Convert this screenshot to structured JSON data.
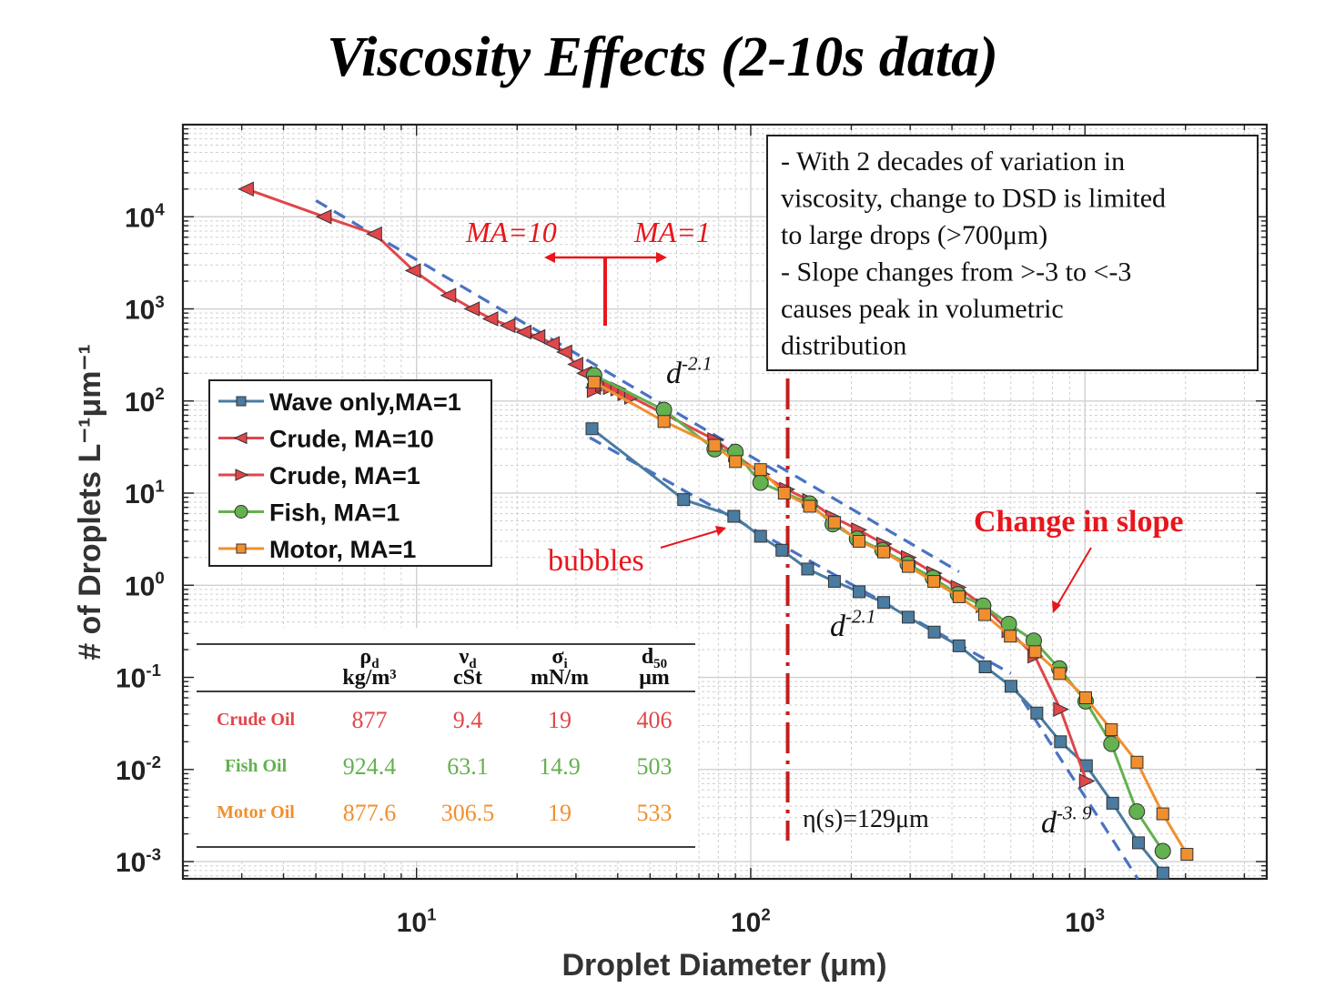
{
  "title": "Viscosity Effects (2-10s data)",
  "chart_data": {
    "type": "line",
    "title": "Viscosity Effects (2-10s data)",
    "xlabel": "Droplet Diameter (μm)",
    "ylabel": "# of Droplets L⁻¹μm⁻¹",
    "xscale": "log",
    "yscale": "log",
    "xlim": [
      2,
      3500
    ],
    "ylim": [
      0.00065,
      100000
    ],
    "grid": true,
    "legend_position": "middle-left",
    "x_ticks": [
      {
        "base": "10",
        "exp": "1"
      },
      {
        "base": "10",
        "exp": "2"
      },
      {
        "base": "10",
        "exp": "3"
      }
    ],
    "y_ticks": [
      {
        "base": "10",
        "exp": "4"
      },
      {
        "base": "10",
        "exp": "3"
      },
      {
        "base": "10",
        "exp": "2"
      },
      {
        "base": "10",
        "exp": "1"
      },
      {
        "base": "10",
        "exp": "0"
      },
      {
        "base": "10",
        "exp": "-1"
      },
      {
        "base": "10",
        "exp": "-2"
      },
      {
        "base": "10",
        "exp": "-3"
      }
    ],
    "series": [
      {
        "name": "Wave only,MA=1",
        "color": "#4a7ba0",
        "marker": "square",
        "x": [
          33.5,
          63,
          89,
          107,
          124,
          148,
          178,
          211,
          250,
          296,
          354,
          420,
          503,
          601,
          718,
          845,
          1010,
          1211,
          1446,
          1712
        ],
        "y": [
          50,
          8.5,
          5.6,
          3.4,
          2.4,
          1.5,
          1.1,
          0.85,
          0.65,
          0.45,
          0.31,
          0.22,
          0.13,
          0.08,
          0.041,
          0.02,
          0.011,
          0.0043,
          0.0016,
          0.00075
        ]
      },
      {
        "name": "Crude, MA=10",
        "color": "#e0464a",
        "marker": "triangle-left",
        "x": [
          3.1,
          5.3,
          7.5,
          9.8,
          12.5,
          14.7,
          16.7,
          18.8,
          21.0,
          23.1,
          25.5,
          27.8,
          30.0,
          31.9,
          33.9
        ],
        "y": [
          20000,
          10000,
          6500,
          2600,
          1400,
          1000,
          780,
          660,
          560,
          500,
          420,
          340,
          250,
          200,
          140
        ]
      },
      {
        "name": "Crude, MA=1",
        "color": "#e0464a",
        "marker": "triangle-right",
        "x": [
          34,
          36,
          38,
          40,
          42,
          44,
          78,
          90,
          108,
          128,
          150,
          176,
          210,
          250,
          296,
          353,
          417,
          496,
          592,
          708,
          845,
          1010
        ],
        "y": [
          130,
          150,
          140,
          135,
          120,
          110,
          38,
          26,
          16,
          11,
          8.3,
          5.5,
          4.0,
          2.8,
          2.0,
          1.35,
          0.95,
          0.6,
          0.32,
          0.17,
          0.045,
          0.0075
        ]
      },
      {
        "name": "Fish, MA=1",
        "color": "#63b14f",
        "marker": "circle",
        "x": [
          34,
          55,
          78,
          90,
          107,
          150,
          176,
          208,
          248,
          295,
          351,
          417,
          496,
          592,
          703,
          838,
          1005,
          1200,
          1430,
          1710
        ],
        "y": [
          190,
          80,
          30,
          28,
          13,
          7.7,
          4.6,
          3.2,
          2.4,
          1.7,
          1.2,
          0.8,
          0.6,
          0.38,
          0.25,
          0.125,
          0.055,
          0.019,
          0.0035,
          0.0013
        ]
      },
      {
        "name": "Motor, MA=1",
        "color": "#f18f2e",
        "marker": "square",
        "x": [
          34,
          55,
          78,
          90,
          107,
          126,
          150,
          178,
          211,
          250,
          296,
          353,
          420,
          501,
          598,
          710,
          840,
          1005,
          1200,
          1432,
          1710,
          2020
        ],
        "y": [
          160,
          60,
          33,
          22,
          18,
          10,
          7.2,
          4.8,
          3.0,
          2.3,
          1.6,
          1.1,
          0.75,
          0.48,
          0.28,
          0.19,
          0.11,
          0.06,
          0.027,
          0.012,
          0.0033,
          0.0012
        ]
      }
    ],
    "guide_lines": [
      {
        "label_base": "d",
        "label_exp": "-2.1",
        "color": "#4a72c4",
        "x": [
          5,
          120
        ],
        "y": [
          15000,
          17
        ]
      },
      {
        "label_base": "d",
        "label_exp": "-2.1",
        "color": "#4a72c4",
        "x": [
          33,
          600
        ],
        "y": [
          40,
          0.11
        ]
      },
      {
        "label_base": "d",
        "label_exp": "-2.1",
        "color": "#4a72c4",
        "x": [
          120,
          420
        ],
        "y": [
          20,
          1.4
        ]
      },
      {
        "label_base": "d",
        "label_exp": "-3. 9",
        "color": "#4a72c4",
        "x": [
          600,
          1440
        ],
        "y": [
          0.09,
          0.00065
        ]
      }
    ],
    "vertical_line": {
      "x": 129,
      "color": "#c41c1c",
      "label": "η(s)=129μm"
    }
  },
  "annotations": {
    "ma10": "MA=10",
    "ma1": "MA=1",
    "bubbles": "bubbles",
    "change_slope": "Change in slope",
    "slope1": {
      "base": "d",
      "exp": "-2.1"
    },
    "slope2": {
      "base": "d",
      "exp": "-2.1"
    },
    "slope3": {
      "base": "d",
      "exp": "-3. 9"
    },
    "eta": "η(s)=129μm"
  },
  "info_box": {
    "lines": [
      "- With 2 decades of variation in",
      "viscosity, change to DSD is limited",
      "to large drops (>700μm)",
      "- Slope changes from >-3 to <-3",
      "causes peak in volumetric",
      "distribution"
    ]
  },
  "props_table": {
    "headers": [
      {
        "top": "ρ",
        "sub": "d",
        "unit": "kg/m³"
      },
      {
        "top": "ν",
        "sub": "d",
        "unit": "cSt"
      },
      {
        "top": "σ",
        "sub": "i",
        "unit": "mN/m"
      },
      {
        "top": "d",
        "sub": "50",
        "unit": "μm"
      }
    ],
    "rows": [
      {
        "name": "Crude Oil",
        "color": "#e0464a",
        "values": [
          "877",
          "9.4",
          "19",
          "406"
        ]
      },
      {
        "name": "Fish Oil",
        "color": "#63b14f",
        "values": [
          "924.4",
          "63.1",
          "14.9",
          "503"
        ]
      },
      {
        "name": "Motor Oil",
        "color": "#f18f2e",
        "values": [
          "877.6",
          "306.5",
          "19",
          "533"
        ]
      }
    ]
  }
}
